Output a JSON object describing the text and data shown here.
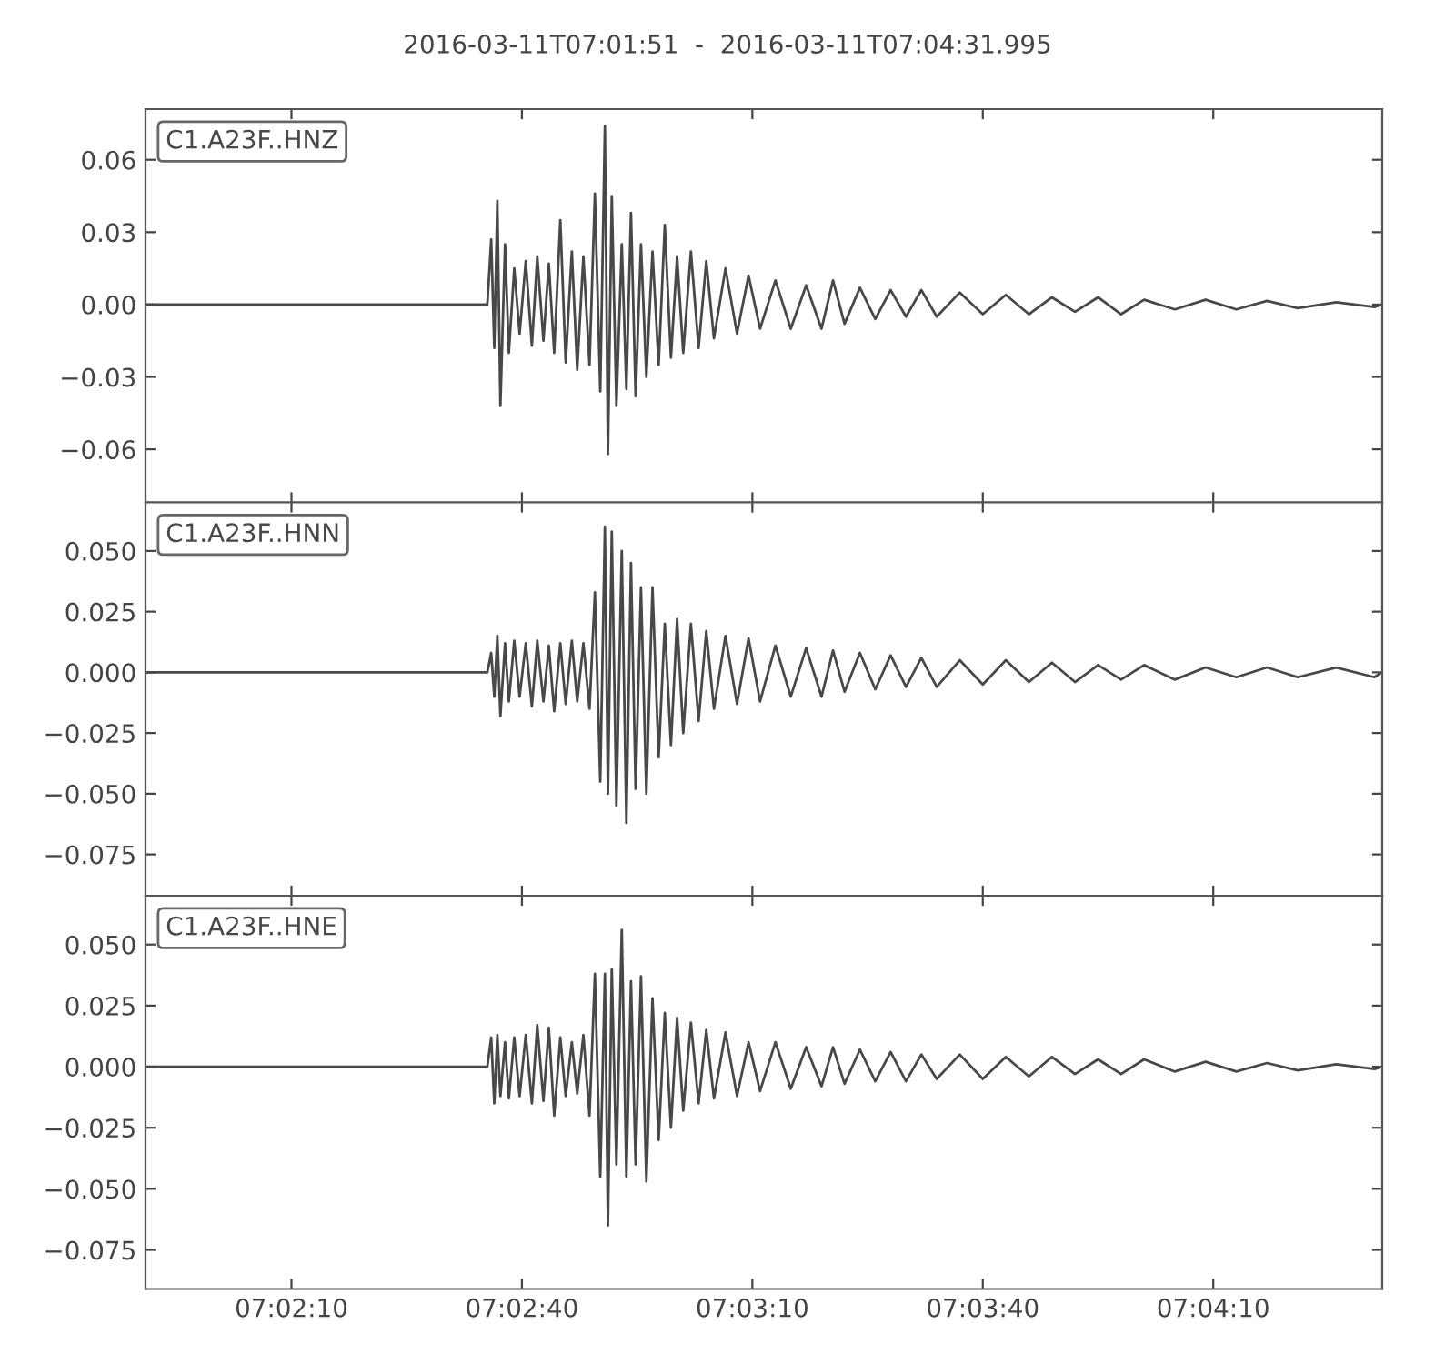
{
  "chart_data": [
    {
      "type": "line",
      "title": "2016-03-11T07:01:51  -  2016-03-11T07:04:31.995",
      "x": [
        "2016-03-11T07:01:51.0",
        "2016-03-11T07:02:11.0",
        "2016-03-11T07:02:35.5",
        "2016-03-11T07:02:36.0",
        "2016-03-11T07:02:36.4",
        "2016-03-11T07:02:36.8",
        "2016-03-11T07:02:37.2",
        "2016-03-11T07:02:37.8",
        "2016-03-11T07:02:38.3",
        "2016-03-11T07:02:39.0",
        "2016-03-11T07:02:39.7",
        "2016-03-11T07:02:40.5",
        "2016-03-11T07:02:41.3",
        "2016-03-11T07:02:42.0",
        "2016-03-11T07:02:42.8",
        "2016-03-11T07:02:43.5",
        "2016-03-11T07:02:44.2",
        "2016-03-11T07:02:45.0",
        "2016-03-11T07:02:45.7",
        "2016-03-11T07:02:46.5",
        "2016-03-11T07:02:47.2",
        "2016-03-11T07:02:48.0",
        "2016-03-11T07:02:48.8",
        "2016-03-11T07:02:49.5",
        "2016-03-11T07:02:50.2",
        "2016-03-11T07:02:50.8",
        "2016-03-11T07:02:51.2",
        "2016-03-11T07:02:51.7",
        "2016-03-11T07:02:52.3",
        "2016-03-11T07:02:53.0",
        "2016-03-11T07:02:53.6",
        "2016-03-11T07:02:54.2",
        "2016-03-11T07:02:54.8",
        "2016-03-11T07:02:55.5",
        "2016-03-11T07:02:56.2",
        "2016-03-11T07:02:57.0",
        "2016-03-11T07:02:57.8",
        "2016-03-11T07:02:58.6",
        "2016-03-11T07:02:59.4",
        "2016-03-11T07:03:00.2",
        "2016-03-11T07:03:01.0",
        "2016-03-11T07:03:02.0",
        "2016-03-11T07:03:03.0",
        "2016-03-11T07:03:04.0",
        "2016-03-11T07:03:05.0",
        "2016-03-11T07:03:06.5",
        "2016-03-11T07:03:08.0",
        "2016-03-11T07:03:09.5",
        "2016-03-11T07:03:11.0",
        "2016-03-11T07:03:13.0",
        "2016-03-11T07:03:15.0",
        "2016-03-11T07:03:17.0",
        "2016-03-11T07:03:19.0",
        "2016-03-11T07:03:20.5",
        "2016-03-11T07:03:22.0",
        "2016-03-11T07:03:24.0",
        "2016-03-11T07:03:26.0",
        "2016-03-11T07:03:28.0",
        "2016-03-11T07:03:30.0",
        "2016-03-11T07:03:32.0",
        "2016-03-11T07:03:34.0",
        "2016-03-11T07:03:37.0",
        "2016-03-11T07:03:40.0",
        "2016-03-11T07:03:43.0",
        "2016-03-11T07:03:46.0",
        "2016-03-11T07:03:49.0",
        "2016-03-11T07:03:52.0",
        "2016-03-11T07:03:55.0",
        "2016-03-11T07:03:58.0",
        "2016-03-11T07:04:01.0",
        "2016-03-11T07:04:05.0",
        "2016-03-11T07:04:09.0",
        "2016-03-11T07:04:13.0",
        "2016-03-11T07:04:17.0",
        "2016-03-11T07:04:21.0",
        "2016-03-11T07:04:26.0",
        "2016-03-11T07:04:31.0",
        "2016-03-11T07:04:31.9"
      ],
      "series": [
        {
          "name": "C1.A23F..HNZ",
          "color": "#484848",
          "values": [
            0,
            0,
            0,
            0.027,
            -0.018,
            0.043,
            -0.042,
            0.025,
            -0.02,
            0.015,
            -0.012,
            0.018,
            -0.017,
            0.02,
            -0.015,
            0.017,
            -0.02,
            0.035,
            -0.024,
            0.022,
            -0.027,
            0.02,
            -0.025,
            0.046,
            -0.036,
            0.074,
            -0.062,
            0.045,
            -0.042,
            0.025,
            -0.035,
            0.038,
            -0.038,
            0.025,
            -0.03,
            0.022,
            -0.025,
            0.033,
            -0.022,
            0.02,
            -0.02,
            0.022,
            -0.018,
            0.018,
            -0.014,
            0.015,
            -0.012,
            0.012,
            -0.01,
            0.01,
            -0.01,
            0.008,
            -0.01,
            0.01,
            -0.008,
            0.007,
            -0.006,
            0.006,
            -0.005,
            0.006,
            -0.005,
            0.005,
            -0.004,
            0.004,
            -0.004,
            0.003,
            -0.003,
            0.003,
            -0.004,
            0.002,
            -0.002,
            0.002,
            -0.002,
            0.0015,
            -0.0015,
            0.001,
            -0.001,
            0
          ]
        }
      ],
      "xlim": [
        "2016-03-11T07:01:51",
        "2016-03-11T07:04:31.995"
      ],
      "xticks": [
        {
          "value": "2016-03-11T07:02:10",
          "label": null
        },
        {
          "value": "2016-03-11T07:02:40",
          "label": null
        },
        {
          "value": "2016-03-11T07:03:10",
          "label": null
        },
        {
          "value": "2016-03-11T07:03:40",
          "label": null
        },
        {
          "value": "2016-03-11T07:04:10",
          "label": null
        }
      ],
      "ylim": [
        -0.082,
        0.081
      ],
      "yticks": [
        {
          "value": -0.06,
          "label": "−0.06"
        },
        {
          "value": -0.03,
          "label": "−0.03"
        },
        {
          "value": 0,
          "label": "0.00"
        },
        {
          "value": 0.03,
          "label": "0.03"
        },
        {
          "value": 0.06,
          "label": "0.06"
        }
      ],
      "tick_labels": "y",
      "legend": "top left",
      "grid": false
    },
    {
      "type": "line",
      "x": [
        "2016-03-11T07:01:51.0",
        "2016-03-11T07:02:11.0",
        "2016-03-11T07:02:35.5",
        "2016-03-11T07:02:36.0",
        "2016-03-11T07:02:36.4",
        "2016-03-11T07:02:36.8",
        "2016-03-11T07:02:37.2",
        "2016-03-11T07:02:37.8",
        "2016-03-11T07:02:38.3",
        "2016-03-11T07:02:39.0",
        "2016-03-11T07:02:39.7",
        "2016-03-11T07:02:40.5",
        "2016-03-11T07:02:41.3",
        "2016-03-11T07:02:42.0",
        "2016-03-11T07:02:42.8",
        "2016-03-11T07:02:43.5",
        "2016-03-11T07:02:44.2",
        "2016-03-11T07:02:45.0",
        "2016-03-11T07:02:45.7",
        "2016-03-11T07:02:46.5",
        "2016-03-11T07:02:47.2",
        "2016-03-11T07:02:48.0",
        "2016-03-11T07:02:48.8",
        "2016-03-11T07:02:49.5",
        "2016-03-11T07:02:50.2",
        "2016-03-11T07:02:50.8",
        "2016-03-11T07:02:51.2",
        "2016-03-11T07:02:51.7",
        "2016-03-11T07:02:52.3",
        "2016-03-11T07:02:53.0",
        "2016-03-11T07:02:53.6",
        "2016-03-11T07:02:54.2",
        "2016-03-11T07:02:54.8",
        "2016-03-11T07:02:55.5",
        "2016-03-11T07:02:56.2",
        "2016-03-11T07:02:57.0",
        "2016-03-11T07:02:57.8",
        "2016-03-11T07:02:58.6",
        "2016-03-11T07:02:59.4",
        "2016-03-11T07:03:00.2",
        "2016-03-11T07:03:01.0",
        "2016-03-11T07:03:02.0",
        "2016-03-11T07:03:03.0",
        "2016-03-11T07:03:04.0",
        "2016-03-11T07:03:05.0",
        "2016-03-11T07:03:06.5",
        "2016-03-11T07:03:08.0",
        "2016-03-11T07:03:09.5",
        "2016-03-11T07:03:11.0",
        "2016-03-11T07:03:13.0",
        "2016-03-11T07:03:15.0",
        "2016-03-11T07:03:17.0",
        "2016-03-11T07:03:19.0",
        "2016-03-11T07:03:20.5",
        "2016-03-11T07:03:22.0",
        "2016-03-11T07:03:24.0",
        "2016-03-11T07:03:26.0",
        "2016-03-11T07:03:28.0",
        "2016-03-11T07:03:30.0",
        "2016-03-11T07:03:32.0",
        "2016-03-11T07:03:34.0",
        "2016-03-11T07:03:37.0",
        "2016-03-11T07:03:40.0",
        "2016-03-11T07:03:43.0",
        "2016-03-11T07:03:46.0",
        "2016-03-11T07:03:49.0",
        "2016-03-11T07:03:52.0",
        "2016-03-11T07:03:55.0",
        "2016-03-11T07:03:58.0",
        "2016-03-11T07:04:01.0",
        "2016-03-11T07:04:05.0",
        "2016-03-11T07:04:09.0",
        "2016-03-11T07:04:13.0",
        "2016-03-11T07:04:17.0",
        "2016-03-11T07:04:21.0",
        "2016-03-11T07:04:26.0",
        "2016-03-11T07:04:31.0",
        "2016-03-11T07:04:31.9"
      ],
      "series": [
        {
          "name": "C1.A23F..HNN",
          "color": "#484848",
          "values": [
            0,
            0,
            0,
            0.008,
            -0.01,
            0.015,
            -0.018,
            0.012,
            -0.012,
            0.013,
            -0.01,
            0.012,
            -0.014,
            0.013,
            -0.012,
            0.011,
            -0.016,
            0.012,
            -0.013,
            0.013,
            -0.012,
            0.012,
            -0.015,
            0.033,
            -0.045,
            0.06,
            -0.05,
            0.058,
            -0.055,
            0.05,
            -0.062,
            0.045,
            -0.048,
            0.035,
            -0.05,
            0.035,
            -0.035,
            0.02,
            -0.03,
            0.022,
            -0.025,
            0.02,
            -0.02,
            0.017,
            -0.015,
            0.015,
            -0.013,
            0.014,
            -0.012,
            0.011,
            -0.01,
            0.01,
            -0.01,
            0.009,
            -0.008,
            0.008,
            -0.007,
            0.007,
            -0.006,
            0.006,
            -0.006,
            0.005,
            -0.005,
            0.005,
            -0.004,
            0.004,
            -0.004,
            0.003,
            -0.003,
            0.003,
            -0.003,
            0.002,
            -0.002,
            0.002,
            -0.002,
            0.002,
            -0.002,
            0
          ]
        }
      ],
      "xlim": [
        "2016-03-11T07:01:51",
        "2016-03-11T07:04:31.995"
      ],
      "xticks": [
        {
          "value": "2016-03-11T07:02:10",
          "label": null
        },
        {
          "value": "2016-03-11T07:02:40",
          "label": null
        },
        {
          "value": "2016-03-11T07:03:10",
          "label": null
        },
        {
          "value": "2016-03-11T07:03:40",
          "label": null
        },
        {
          "value": "2016-03-11T07:04:10",
          "label": null
        }
      ],
      "ylim": [
        -0.092,
        0.07
      ],
      "yticks": [
        {
          "value": -0.075,
          "label": "−0.075"
        },
        {
          "value": -0.05,
          "label": "−0.050"
        },
        {
          "value": -0.025,
          "label": "−0.025"
        },
        {
          "value": 0,
          "label": "0.000"
        },
        {
          "value": 0.025,
          "label": "0.025"
        },
        {
          "value": 0.05,
          "label": "0.050"
        }
      ],
      "tick_labels": "y",
      "legend": "top left",
      "grid": false
    },
    {
      "type": "line",
      "x": [
        "2016-03-11T07:01:51.0",
        "2016-03-11T07:02:11.0",
        "2016-03-11T07:02:35.5",
        "2016-03-11T07:02:36.0",
        "2016-03-11T07:02:36.4",
        "2016-03-11T07:02:36.8",
        "2016-03-11T07:02:37.2",
        "2016-03-11T07:02:37.8",
        "2016-03-11T07:02:38.3",
        "2016-03-11T07:02:39.0",
        "2016-03-11T07:02:39.7",
        "2016-03-11T07:02:40.5",
        "2016-03-11T07:02:41.3",
        "2016-03-11T07:02:42.0",
        "2016-03-11T07:02:42.8",
        "2016-03-11T07:02:43.5",
        "2016-03-11T07:02:44.2",
        "2016-03-11T07:02:45.0",
        "2016-03-11T07:02:45.7",
        "2016-03-11T07:02:46.5",
        "2016-03-11T07:02:47.2",
        "2016-03-11T07:02:48.0",
        "2016-03-11T07:02:48.8",
        "2016-03-11T07:02:49.5",
        "2016-03-11T07:02:50.2",
        "2016-03-11T07:02:50.8",
        "2016-03-11T07:02:51.2",
        "2016-03-11T07:02:51.7",
        "2016-03-11T07:02:52.3",
        "2016-03-11T07:02:53.0",
        "2016-03-11T07:02:53.6",
        "2016-03-11T07:02:54.2",
        "2016-03-11T07:02:54.8",
        "2016-03-11T07:02:55.5",
        "2016-03-11T07:02:56.2",
        "2016-03-11T07:02:57.0",
        "2016-03-11T07:02:57.8",
        "2016-03-11T07:02:58.6",
        "2016-03-11T07:02:59.4",
        "2016-03-11T07:03:00.2",
        "2016-03-11T07:03:01.0",
        "2016-03-11T07:03:02.0",
        "2016-03-11T07:03:03.0",
        "2016-03-11T07:03:04.0",
        "2016-03-11T07:03:05.0",
        "2016-03-11T07:03:06.5",
        "2016-03-11T07:03:08.0",
        "2016-03-11T07:03:09.5",
        "2016-03-11T07:03:11.0",
        "2016-03-11T07:03:13.0",
        "2016-03-11T07:03:15.0",
        "2016-03-11T07:03:17.0",
        "2016-03-11T07:03:19.0",
        "2016-03-11T07:03:20.5",
        "2016-03-11T07:03:22.0",
        "2016-03-11T07:03:24.0",
        "2016-03-11T07:03:26.0",
        "2016-03-11T07:03:28.0",
        "2016-03-11T07:03:30.0",
        "2016-03-11T07:03:32.0",
        "2016-03-11T07:03:34.0",
        "2016-03-11T07:03:37.0",
        "2016-03-11T07:03:40.0",
        "2016-03-11T07:03:43.0",
        "2016-03-11T07:03:46.0",
        "2016-03-11T07:03:49.0",
        "2016-03-11T07:03:52.0",
        "2016-03-11T07:03:55.0",
        "2016-03-11T07:03:58.0",
        "2016-03-11T07:04:01.0",
        "2016-03-11T07:04:05.0",
        "2016-03-11T07:04:09.0",
        "2016-03-11T07:04:13.0",
        "2016-03-11T07:04:17.0",
        "2016-03-11T07:04:21.0",
        "2016-03-11T07:04:26.0",
        "2016-03-11T07:04:31.0",
        "2016-03-11T07:04:31.9"
      ],
      "series": [
        {
          "name": "C1.A23F..HNE",
          "color": "#484848",
          "values": [
            0,
            0,
            0,
            0.012,
            -0.015,
            0.013,
            -0.012,
            0.01,
            -0.013,
            0.012,
            -0.012,
            0.013,
            -0.015,
            0.017,
            -0.014,
            0.016,
            -0.02,
            0.012,
            -0.012,
            0.01,
            -0.011,
            0.013,
            -0.02,
            0.038,
            -0.045,
            0.038,
            -0.065,
            0.04,
            -0.04,
            0.056,
            -0.045,
            0.035,
            -0.04,
            0.037,
            -0.047,
            0.028,
            -0.03,
            0.022,
            -0.025,
            0.02,
            -0.018,
            0.018,
            -0.015,
            0.015,
            -0.013,
            0.014,
            -0.012,
            0.01,
            -0.01,
            0.01,
            -0.009,
            0.008,
            -0.008,
            0.008,
            -0.007,
            0.007,
            -0.006,
            0.006,
            -0.006,
            0.005,
            -0.005,
            0.005,
            -0.005,
            0.004,
            -0.004,
            0.004,
            -0.003,
            0.003,
            -0.003,
            0.003,
            -0.002,
            0.002,
            -0.002,
            0.0015,
            -0.0015,
            0.001,
            -0.001,
            0
          ]
        }
      ],
      "xlim": [
        "2016-03-11T07:01:51",
        "2016-03-11T07:04:31.995"
      ],
      "xticks": [
        {
          "value": "2016-03-11T07:02:10",
          "label": "07:02:10"
        },
        {
          "value": "2016-03-11T07:02:40",
          "label": "07:02:40"
        },
        {
          "value": "2016-03-11T07:03:10",
          "label": "07:03:10"
        },
        {
          "value": "2016-03-11T07:03:40",
          "label": "07:03:40"
        },
        {
          "value": "2016-03-11T07:04:10",
          "label": "07:04:10"
        }
      ],
      "ylim": [
        -0.091,
        0.07
      ],
      "yticks": [
        {
          "value": -0.075,
          "label": "−0.075"
        },
        {
          "value": -0.05,
          "label": "−0.050"
        },
        {
          "value": -0.025,
          "label": "−0.025"
        },
        {
          "value": 0,
          "label": "0.000"
        },
        {
          "value": 0.025,
          "label": "0.025"
        },
        {
          "value": 0.05,
          "label": "0.050"
        }
      ],
      "legend": "top left",
      "grid": false
    }
  ]
}
